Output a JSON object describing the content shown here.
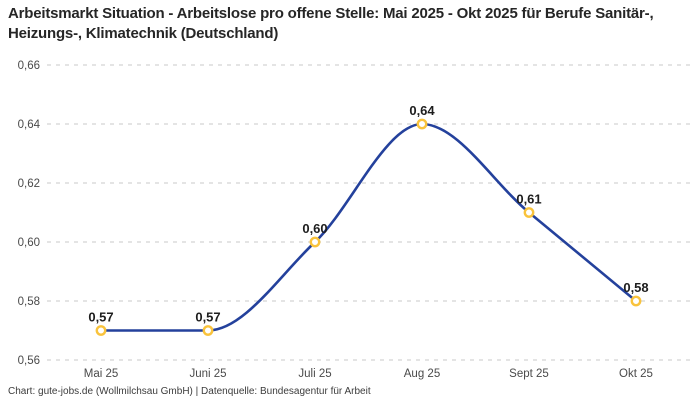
{
  "title": "Arbeitsmarkt Situation - Arbeitslose pro offene Stelle: Mai 2025 - Okt 2025 für Berufe Sanitär-, Heizungs-, Klimatechnik (Deutschland)",
  "footer": "Chart: gute-jobs.de (Wollmilchsau GmbH) | Datenquelle: Bundesagentur für Arbeit",
  "colors": {
    "line": "#24419c",
    "marker_ring": "#f9c33c",
    "marker_fill": "#ffffff",
    "grid": "#c9c9c9",
    "title_text": "#262626",
    "axis_text": "#4a4a4a",
    "data_label_text": "#1d1d1d"
  },
  "chart_data": {
    "type": "line",
    "title": "Arbeitsmarkt Situation - Arbeitslose pro offene Stelle: Mai 2025 - Okt 2025 für Berufe Sanitär-, Heizungs-, Klimatechnik (Deutschland)",
    "categories": [
      "Mai 25",
      "Juni 25",
      "Juli 25",
      "Aug 25",
      "Sept 25",
      "Okt 25"
    ],
    "values": [
      0.57,
      0.57,
      0.6,
      0.64,
      0.61,
      0.58
    ],
    "point_labels": [
      "0,57",
      "0,57",
      "0,60",
      "0,64",
      "0,61",
      "0,58"
    ],
    "xlabel": "",
    "ylabel": "",
    "ylim": [
      0.56,
      0.66
    ],
    "yticks": [
      0.66,
      0.64,
      0.62,
      0.6,
      0.58,
      0.56
    ],
    "ytick_labels": [
      "0,66",
      "0,64",
      "0,62",
      "0,60",
      "0,58",
      "0,56"
    ],
    "grid": "horizontal-dashed",
    "legend": "none",
    "interpolation": "monotone",
    "source": "Chart: gute-jobs.de (Wollmilchsau GmbH) | Datenquelle: Bundesagentur für Arbeit"
  }
}
